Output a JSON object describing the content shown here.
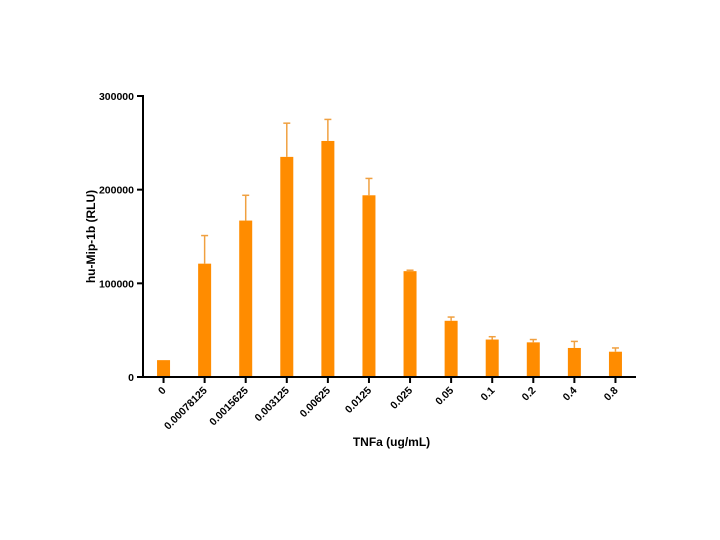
{
  "chart_data": {
    "type": "bar",
    "xlabel": "TNFa (ug/mL)",
    "ylabel": "hu-Mip-1b (RLU)",
    "categories": [
      "0",
      "0.00078125",
      "0.0015625",
      "0.003125",
      "0.00625",
      "0.0125",
      "0.025",
      "0.05",
      "0.1",
      "0.2",
      "0.4",
      "0.8"
    ],
    "values": [
      18000,
      121000,
      167000,
      235000,
      252000,
      194000,
      113000,
      60000,
      40000,
      37000,
      31000,
      27000
    ],
    "error_upper": [
      0,
      30000,
      27000,
      36000,
      23000,
      18000,
      1000,
      4000,
      3000,
      3000,
      7000,
      4000
    ],
    "ylim": [
      0,
      300000
    ],
    "yticks": [
      0,
      100000,
      200000,
      300000
    ],
    "ytick_labels": [
      "0",
      "100000",
      "200000",
      "300000"
    ],
    "grid": false,
    "bar_color": "#FF8C00",
    "error_color": "#F0A040"
  }
}
